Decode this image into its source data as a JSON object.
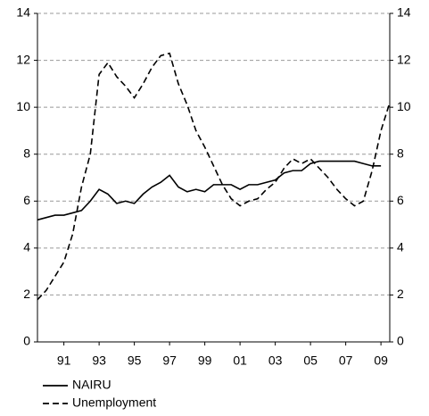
{
  "chart_data": {
    "type": "line",
    "x": [
      1990,
      1990.5,
      1991,
      1991.5,
      1992,
      1992.5,
      1993,
      1993.5,
      1994,
      1994.5,
      1995,
      1995.5,
      1996,
      1996.5,
      1997,
      1997.5,
      1998,
      1998.5,
      1999,
      1999.5,
      2000,
      2000.5,
      2001,
      2001.5,
      2002,
      2002.5,
      2003,
      2003.5,
      2004,
      2004.5,
      2005,
      2005.5,
      2006,
      2006.5,
      2007,
      2007.5,
      2008,
      2008.5,
      2009,
      2009.5,
      2010
    ],
    "series": [
      {
        "name": "NAIRU",
        "color": "#000000",
        "dash": false,
        "values": [
          5.2,
          5.3,
          5.4,
          5.4,
          5.5,
          5.6,
          6.0,
          6.5,
          6.3,
          5.9,
          6.0,
          5.9,
          6.3,
          6.6,
          6.8,
          7.1,
          6.6,
          6.4,
          6.5,
          6.4,
          6.7,
          6.7,
          6.7,
          6.5,
          6.7,
          6.7,
          6.8,
          6.9,
          7.2,
          7.3,
          7.3,
          7.6,
          7.7,
          7.7,
          7.7,
          7.7,
          7.7,
          7.6,
          7.5,
          7.5,
          null
        ]
      },
      {
        "name": "Unemployment",
        "color": "#000000",
        "dash": true,
        "values": [
          1.8,
          2.2,
          2.8,
          3.4,
          4.6,
          6.6,
          8.0,
          11.4,
          11.9,
          11.3,
          10.9,
          10.4,
          11.0,
          11.7,
          12.2,
          12.3,
          11.0,
          10.1,
          9.0,
          8.3,
          7.5,
          6.7,
          6.1,
          5.8,
          6.0,
          6.1,
          6.5,
          6.8,
          7.4,
          7.8,
          7.6,
          7.8,
          7.4,
          7.0,
          6.5,
          6.1,
          5.8,
          6.0,
          7.3,
          9.0,
          10.2
        ]
      }
    ],
    "xlim": [
      1990,
      2010
    ],
    "xticks": [
      {
        "value": 1991.5,
        "label": "91"
      },
      {
        "value": 1993.5,
        "label": "93"
      },
      {
        "value": 1995.5,
        "label": "95"
      },
      {
        "value": 1997.5,
        "label": "97"
      },
      {
        "value": 1999.5,
        "label": "99"
      },
      {
        "value": 2001.5,
        "label": "01"
      },
      {
        "value": 2003.5,
        "label": "03"
      },
      {
        "value": 2005.5,
        "label": "05"
      },
      {
        "value": 2007.5,
        "label": "07"
      },
      {
        "value": 2009.5,
        "label": "09"
      }
    ],
    "ylim": [
      0,
      14
    ],
    "yticks": [
      0,
      2,
      4,
      6,
      8,
      10,
      12,
      14
    ],
    "y2lim": [
      0,
      14
    ],
    "y2ticks": [
      0,
      2,
      4,
      6,
      8,
      10,
      12,
      14
    ],
    "grid": true,
    "legend": "bottom-left"
  }
}
